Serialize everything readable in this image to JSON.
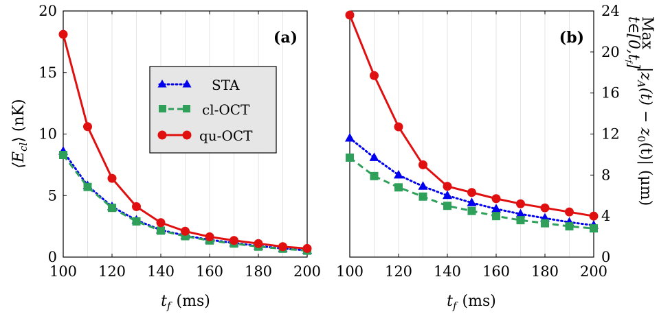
{
  "chart_data": [
    {
      "type": "line",
      "panel_label": "(a)",
      "x_tick_labels": [
        "100",
        "120",
        "140",
        "160",
        "180",
        "200"
      ],
      "y_tick_labels": [
        "0",
        "5",
        "10",
        "15",
        "20"
      ],
      "xlabel_italic": "t",
      "xlabel_sub": "f",
      "xlabel_unit": "(ms)",
      "ylabel_main": "⟨E",
      "ylabel_sub": "cl",
      "ylabel_end": "⟩ (nK)",
      "xlim": [
        100,
        200
      ],
      "ylim": [
        0,
        20
      ],
      "grid": "vertical",
      "legend_position": "center",
      "x": [
        100,
        110,
        120,
        130,
        140,
        150,
        160,
        170,
        180,
        190,
        200
      ],
      "series": [
        {
          "name": "STA",
          "values": [
            8.6,
            5.8,
            4.1,
            3.0,
            2.2,
            1.75,
            1.4,
            1.15,
            0.9,
            0.7,
            0.55
          ]
        },
        {
          "name": "cl-OCT",
          "values": [
            8.3,
            5.7,
            4.0,
            2.9,
            2.15,
            1.7,
            1.35,
            1.1,
            0.85,
            0.68,
            0.52
          ]
        },
        {
          "name": "qu-OCT",
          "values": [
            18.1,
            10.6,
            6.4,
            4.1,
            2.8,
            2.1,
            1.65,
            1.35,
            1.1,
            0.85,
            0.7
          ]
        }
      ]
    },
    {
      "type": "line",
      "panel_label": "(b)",
      "x_tick_labels": [
        "100",
        "120",
        "140",
        "160",
        "180",
        "200"
      ],
      "y_tick_labels": [
        "0",
        "4",
        "8",
        "12",
        "16",
        "20",
        "24"
      ],
      "xlabel_italic": "t",
      "xlabel_sub": "f",
      "xlabel_unit": "(ms)",
      "ylabel_max": "Max",
      "ylabel_range": "t∈[0,t",
      "ylabel_range_sub": "f",
      "ylabel_range_end": "]",
      "ylabel_expr": "|z",
      "ylabel_expr_sub1": "A",
      "ylabel_expr_mid": "(t) − z",
      "ylabel_expr_sub2": "0",
      "ylabel_expr_end": "(t)| (μm)",
      "xlim": [
        100,
        200
      ],
      "ylim": [
        0,
        24
      ],
      "grid": "vertical",
      "x": [
        100,
        110,
        120,
        130,
        140,
        150,
        160,
        170,
        180,
        190,
        200
      ],
      "series": [
        {
          "name": "STA",
          "values": [
            11.6,
            9.7,
            8.0,
            6.9,
            6.0,
            5.3,
            4.7,
            4.2,
            3.8,
            3.4,
            3.1
          ]
        },
        {
          "name": "cl-OCT",
          "values": [
            9.7,
            7.9,
            6.8,
            5.9,
            5.0,
            4.5,
            4.0,
            3.6,
            3.3,
            3.0,
            2.8
          ]
        },
        {
          "name": "qu-OCT",
          "values": [
            23.6,
            17.7,
            12.7,
            9.0,
            6.9,
            6.3,
            5.7,
            5.2,
            4.8,
            4.4,
            4.0
          ]
        }
      ]
    }
  ],
  "legend": {
    "items": [
      {
        "label": "STA",
        "color": "#0000ee",
        "marker": "triangle",
        "dash": "dotted"
      },
      {
        "label": "cl-OCT",
        "color": "#2ea05a",
        "marker": "square",
        "dash": "dashed"
      },
      {
        "label": "qu-OCT",
        "color": "#e01010",
        "marker": "circle",
        "dash": "solid"
      }
    ]
  },
  "colors": {
    "STA": "#0000ee",
    "cl-OCT": "#2ea05a",
    "qu-OCT": "#e01010",
    "legend_bg": "#e6e6e6"
  }
}
